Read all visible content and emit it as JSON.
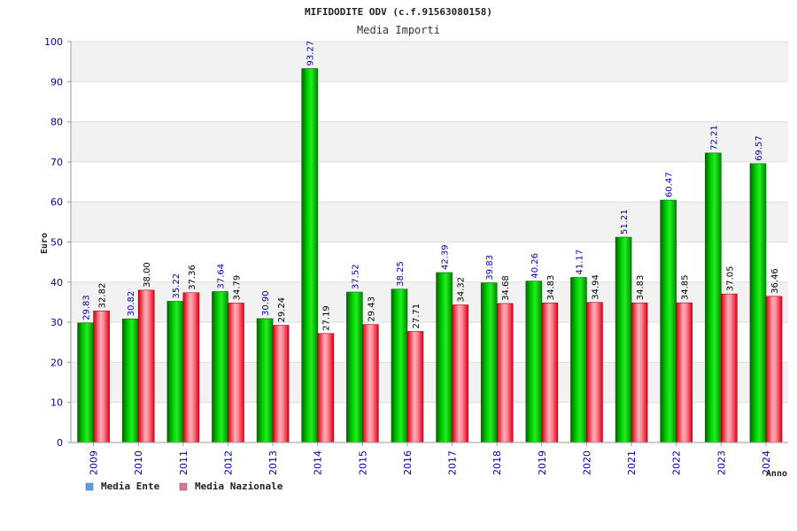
{
  "chart_data": {
    "type": "bar",
    "title": "MIFIDODITE ODV (c.f.91563080158)",
    "subtitle": "Media Importi",
    "ylabel": "Euro",
    "xlabel": "Anno",
    "ylim": [
      0,
      100
    ],
    "yticks": [
      0,
      10,
      20,
      30,
      40,
      50,
      60,
      70,
      80,
      90,
      100
    ],
    "grid": true,
    "categories": [
      "2009",
      "2010",
      "2011",
      "2012",
      "2013",
      "2014",
      "2015",
      "2016",
      "2017",
      "2018",
      "2019",
      "2020",
      "2021",
      "2022",
      "2023",
      "2024"
    ],
    "series": [
      {
        "name": "Media Ente",
        "color": "#00a000",
        "values": [
          29.83,
          30.82,
          35.22,
          37.64,
          30.9,
          93.27,
          37.52,
          38.25,
          42.39,
          39.83,
          40.26,
          41.17,
          51.21,
          60.47,
          72.21,
          69.57
        ]
      },
      {
        "name": "Media Nazionale",
        "color": "#e0202a",
        "values": [
          32.82,
          38.0,
          37.36,
          34.79,
          29.24,
          27.19,
          29.43,
          27.71,
          34.32,
          34.68,
          34.83,
          34.94,
          34.83,
          34.85,
          37.05,
          36.46
        ]
      }
    ],
    "value_labels": [
      [
        "29.83",
        "30.82",
        "35.22",
        "37.64",
        "30.90",
        "93.27",
        "37.52",
        "38.25",
        "42.39",
        "39.83",
        "40.26",
        "41.17",
        "51.21",
        "60.47",
        "72.21",
        "69.57"
      ],
      [
        "32.82",
        "38.00",
        "37.36",
        "34.79",
        "29.24",
        "27.19",
        "29.43",
        "27.71",
        "34.32",
        "34.68",
        "34.83",
        "34.94",
        "34.83",
        "34.85",
        "37.05",
        "36.46"
      ]
    ],
    "legend_colors": [
      "#5aa0e8",
      "#e070a0"
    ],
    "legend_position": "bottom-left"
  }
}
